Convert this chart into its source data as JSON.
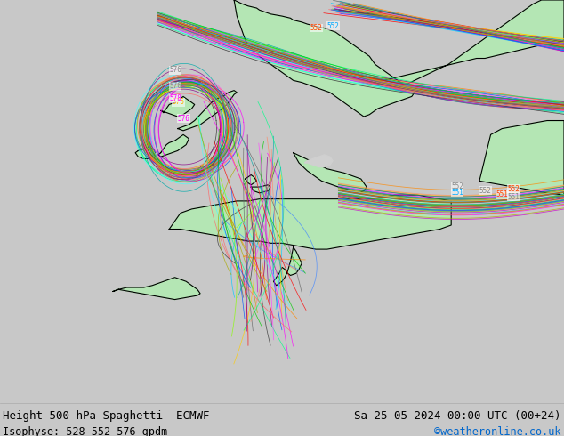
{
  "title_left": "Height 500 hPa Spaghetti  ECMWF",
  "title_right": "Sa 25-05-2024 00:00 UTC (00+24)",
  "subtitle_left": "Isophyse: 528 552 576 gpdm",
  "subtitle_right": "©weatheronline.co.uk",
  "subtitle_right_color": "#0066cc",
  "bg_color": "#c8c8c8",
  "green_land": "#b4e6b4",
  "gray_land": "#c8c8c8",
  "bottom_bar_color": "#d8d8d8",
  "figsize": [
    6.34,
    4.9
  ],
  "dpi": 100,
  "text_fontsize": 9,
  "subtitle_fontsize": 8.5,
  "line_colors": [
    "#333333",
    "#ff0000",
    "#0055ff",
    "#ff00ff",
    "#00cc00",
    "#ff8800",
    "#880088",
    "#00aaaa",
    "#aaaa00",
    "#666666",
    "#ff6666",
    "#00ff88",
    "#4488ff",
    "#ff44ff",
    "#44ffff",
    "#ffcc00",
    "#cc00cc",
    "#00ccff",
    "#ff8866",
    "#88ff00"
  ],
  "n_members": 51,
  "map_outline_color": "#000000",
  "label_colors": {
    "528": "#00aaff",
    "552": "#ff4400",
    "576": "#888888"
  }
}
